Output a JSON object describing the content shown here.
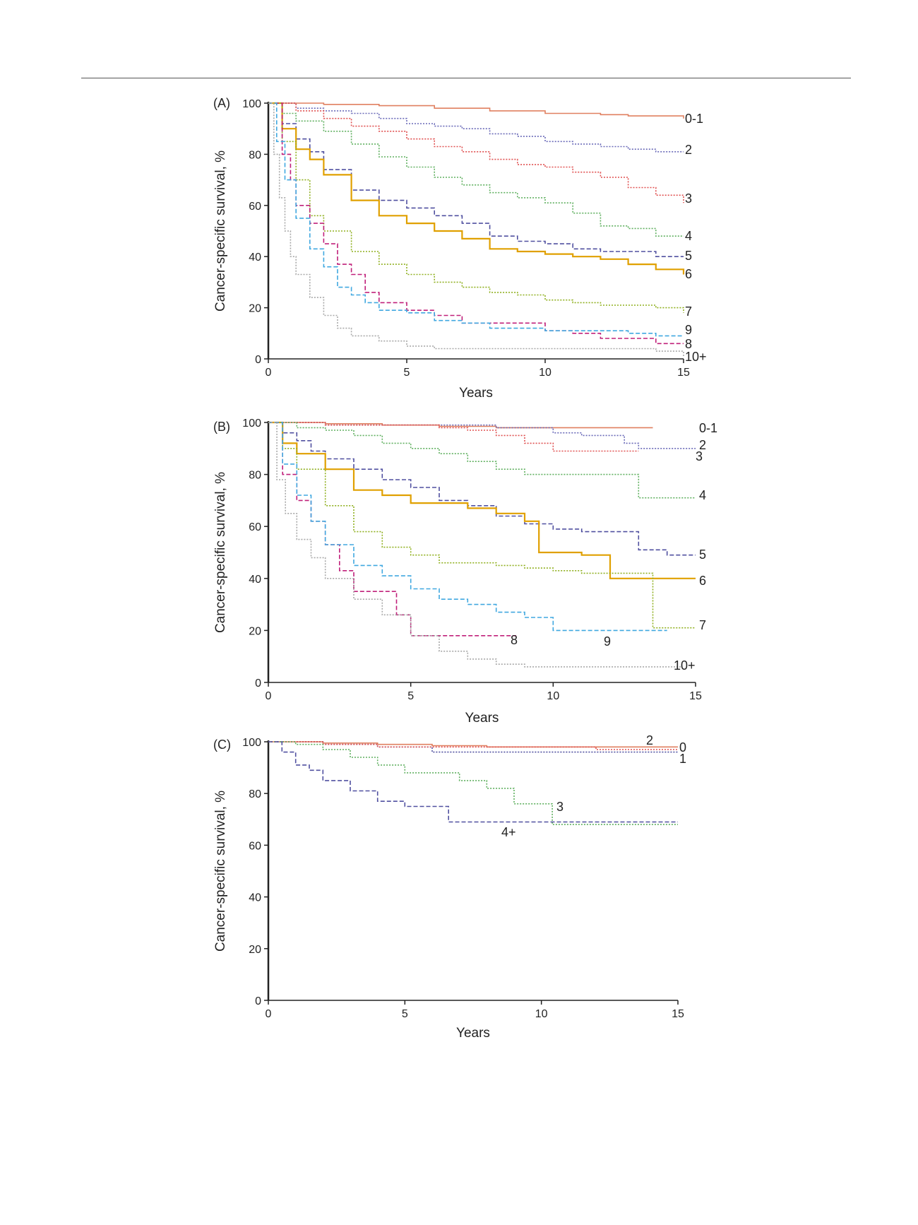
{
  "chart_data": [
    {
      "type": "line",
      "panel_label": "(A)",
      "xlabel": "Years",
      "ylabel": "Cancer-specific survival, %",
      "xlim": [
        0,
        15
      ],
      "ylim": [
        0,
        100
      ],
      "xticks": [
        "0",
        "5",
        "10",
        "15"
      ],
      "yticks": [
        "0",
        "20",
        "40",
        "60",
        "80",
        "100"
      ],
      "series": [
        {
          "name": "0-1",
          "color": "#e08060",
          "dash": "solid",
          "x": [
            0,
            2,
            4,
            6,
            8,
            10,
            12,
            13,
            15
          ],
          "y": [
            100,
            99.5,
            99,
            98,
            97,
            96,
            95.5,
            95,
            94
          ]
        },
        {
          "name": "2",
          "color": "#6a6ab8",
          "dash": "dotted",
          "x": [
            0,
            1,
            2,
            3,
            4,
            5,
            6,
            7,
            8,
            9,
            10,
            11,
            12,
            13,
            14,
            15
          ],
          "y": [
            100,
            98,
            97,
            96,
            94,
            92,
            91,
            90,
            88,
            87,
            85,
            84,
            83,
            82,
            81,
            81
          ]
        },
        {
          "name": "3",
          "color": "#e05050",
          "dash": "dotted",
          "x": [
            0,
            1,
            2,
            3,
            4,
            5,
            6,
            7,
            8,
            9,
            10,
            11,
            12,
            13,
            14,
            15
          ],
          "y": [
            100,
            97,
            94,
            91,
            89,
            86,
            83,
            81,
            78,
            76,
            75,
            73,
            71,
            67,
            64,
            61
          ]
        },
        {
          "name": "4",
          "color": "#60b060",
          "dash": "dotted",
          "x": [
            0,
            0.5,
            1,
            2,
            3,
            4,
            5,
            6,
            7,
            8,
            9,
            10,
            11,
            12,
            13,
            14,
            15
          ],
          "y": [
            100,
            96,
            93,
            89,
            84,
            79,
            75,
            71,
            68,
            65,
            63,
            61,
            57,
            52,
            51,
            48,
            48
          ]
        },
        {
          "name": "5",
          "color": "#5050a0",
          "dash": "dashed",
          "x": [
            0,
            0.5,
            1,
            1.5,
            2,
            3,
            4,
            5,
            6,
            7,
            8,
            9,
            10,
            11,
            12,
            13,
            14,
            15
          ],
          "y": [
            100,
            92,
            86,
            81,
            74,
            66,
            62,
            59,
            56,
            53,
            48,
            46,
            45,
            43,
            42,
            42,
            40,
            40
          ]
        },
        {
          "name": "6",
          "color": "#e0a000",
          "dash": "solid",
          "x": [
            0,
            0.5,
            1,
            1.5,
            2,
            3,
            4,
            5,
            6,
            7,
            8,
            9,
            10,
            11,
            12,
            13,
            14,
            15
          ],
          "y": [
            100,
            90,
            82,
            78,
            72,
            62,
            56,
            53,
            50,
            47,
            43,
            42,
            41,
            40,
            39,
            37,
            35,
            33
          ]
        },
        {
          "name": "7",
          "color": "#90b020",
          "dash": "dotted",
          "x": [
            0,
            0.5,
            1,
            1.5,
            2,
            3,
            4,
            5,
            6,
            7,
            8,
            9,
            10,
            11,
            12,
            13,
            14,
            15
          ],
          "y": [
            100,
            85,
            70,
            56,
            50,
            42,
            37,
            33,
            30,
            28,
            26,
            25,
            23,
            22,
            21,
            21,
            20,
            18
          ]
        },
        {
          "name": "8",
          "color": "#c0207a",
          "dash": "dashed",
          "x": [
            0,
            0.5,
            0.8,
            1,
            1.5,
            2,
            2.5,
            3,
            3.5,
            4,
            5,
            6,
            7,
            8,
            9,
            10,
            11,
            12,
            13,
            14,
            15
          ],
          "y": [
            100,
            80,
            70,
            60,
            53,
            45,
            37,
            33,
            26,
            22,
            19,
            17,
            14,
            14,
            14,
            11,
            10,
            8,
            8,
            6,
            6
          ]
        },
        {
          "name": "9",
          "color": "#40a8e0",
          "dash": "dashed",
          "x": [
            0,
            0.3,
            0.6,
            1,
            1.5,
            2,
            2.5,
            3,
            3.5,
            4,
            5,
            6,
            7,
            8,
            9,
            10,
            11,
            12,
            13,
            14,
            15
          ],
          "y": [
            100,
            85,
            70,
            55,
            43,
            36,
            28,
            25,
            22,
            19,
            18,
            15,
            14,
            12,
            12,
            11,
            11,
            11,
            10,
            9,
            9
          ]
        },
        {
          "name": "10+",
          "color": "#a8a8a8",
          "dash": "dotted",
          "x": [
            0,
            0.2,
            0.4,
            0.6,
            0.8,
            1,
            1.5,
            2,
            2.5,
            3,
            4,
            5,
            6,
            7,
            8,
            9,
            10,
            11,
            12,
            13,
            14,
            15
          ],
          "y": [
            100,
            80,
            63,
            50,
            40,
            33,
            24,
            17,
            12,
            9,
            7,
            5,
            4,
            4,
            4,
            4,
            4,
            4,
            4,
            4,
            3,
            1
          ]
        }
      ]
    },
    {
      "type": "line",
      "panel_label": "(B)",
      "xlabel": "Years",
      "ylabel": "Cancer-specific survival, %",
      "xlim": [
        0,
        15
      ],
      "ylim": [
        0,
        100
      ],
      "xticks": [
        "0",
        "5",
        "10",
        "15"
      ],
      "yticks": [
        "0",
        "20",
        "40",
        "60",
        "80",
        "100"
      ],
      "series": [
        {
          "name": "0-1",
          "color": "#e08060",
          "dash": "solid",
          "x": [
            0,
            2,
            4,
            6,
            8,
            10,
            12,
            13.5
          ],
          "y": [
            100,
            99.5,
            99,
            98.5,
            98,
            98,
            98,
            98
          ]
        },
        {
          "name": "2",
          "color": "#6a6ab8",
          "dash": "dotted",
          "x": [
            0,
            2,
            4,
            6,
            8,
            10,
            11,
            12,
            12.5,
            13,
            14,
            15
          ],
          "y": [
            100,
            99,
            99,
            99,
            98,
            96,
            95,
            95,
            92,
            90,
            90,
            90
          ]
        },
        {
          "name": "3",
          "color": "#e05050",
          "dash": "dotted",
          "x": [
            0,
            2,
            4,
            6,
            7,
            8,
            9,
            10,
            11,
            13
          ],
          "y": [
            100,
            99,
            99,
            98,
            97,
            95,
            92,
            89,
            89,
            89
          ]
        },
        {
          "name": "4",
          "color": "#60b060",
          "dash": "dotted",
          "x": [
            0,
            1,
            2,
            3,
            4,
            5,
            6,
            7,
            8,
            9,
            10,
            11,
            12,
            13,
            14,
            15
          ],
          "y": [
            100,
            98,
            97,
            95,
            92,
            90,
            88,
            85,
            82,
            80,
            80,
            80,
            80,
            71,
            71,
            71
          ]
        },
        {
          "name": "5",
          "color": "#5050a0",
          "dash": "dashed",
          "x": [
            0,
            0.5,
            1,
            1.5,
            2,
            3,
            4,
            5,
            6,
            7,
            8,
            9,
            10,
            11,
            12,
            13,
            14,
            15
          ],
          "y": [
            100,
            96,
            93,
            89,
            86,
            82,
            78,
            75,
            70,
            68,
            64,
            61,
            59,
            58,
            58,
            51,
            49,
            49
          ]
        },
        {
          "name": "6",
          "color": "#e0a000",
          "dash": "solid",
          "x": [
            0,
            0.5,
            1,
            2,
            3,
            4,
            5,
            6,
            7,
            8,
            9,
            9.5,
            10,
            11,
            12,
            13,
            14,
            15
          ],
          "y": [
            100,
            92,
            88,
            82,
            74,
            72,
            69,
            69,
            67,
            65,
            62,
            50,
            50,
            49,
            40,
            40,
            40,
            40
          ]
        },
        {
          "name": "7",
          "color": "#90b020",
          "dash": "dotted",
          "x": [
            0,
            0.5,
            1,
            2,
            3,
            4,
            5,
            6,
            7,
            8,
            9,
            10,
            11,
            12,
            13,
            13.5,
            14,
            15
          ],
          "y": [
            100,
            90,
            82,
            68,
            58,
            52,
            49,
            46,
            46,
            45,
            44,
            43,
            42,
            42,
            42,
            21,
            21,
            21
          ]
        },
        {
          "name": "8",
          "color": "#c0207a",
          "dash": "dashed",
          "x": [
            0,
            0.5,
            1,
            1.5,
            2,
            2.5,
            3,
            4,
            4.5,
            5,
            6,
            7,
            8,
            8.7
          ],
          "y": [
            100,
            80,
            70,
            62,
            53,
            43,
            35,
            35,
            26,
            18,
            18,
            18,
            18,
            18
          ]
        },
        {
          "name": "9",
          "color": "#40a8e0",
          "dash": "dashed",
          "x": [
            0,
            0.5,
            1,
            1.5,
            2,
            3,
            4,
            5,
            6,
            7,
            8,
            9,
            10,
            11,
            12,
            13,
            14
          ],
          "y": [
            100,
            84,
            72,
            62,
            53,
            45,
            41,
            36,
            32,
            30,
            27,
            25,
            20,
            20,
            20,
            20,
            20
          ]
        },
        {
          "name": "10+",
          "color": "#a8a8a8",
          "dash": "dotted",
          "x": [
            0,
            0.3,
            0.6,
            1,
            1.5,
            2,
            3,
            4,
            5,
            6,
            7,
            8,
            9,
            10,
            11,
            12,
            13,
            14,
            14.5
          ],
          "y": [
            100,
            78,
            65,
            55,
            48,
            40,
            32,
            26,
            18,
            12,
            9,
            7,
            6,
            6,
            6,
            6,
            6,
            6,
            6
          ]
        }
      ]
    },
    {
      "type": "line",
      "panel_label": "(C)",
      "xlabel": "Years",
      "ylabel": "Cancer-specific survival, %",
      "xlim": [
        0,
        15
      ],
      "ylim": [
        0,
        100
      ],
      "xticks": [
        "0",
        "5",
        "10",
        "15"
      ],
      "yticks": [
        "0",
        "20",
        "40",
        "60",
        "80",
        "100"
      ],
      "series": [
        {
          "name": "0",
          "color": "#e08060",
          "dash": "solid",
          "x": [
            0,
            2,
            4,
            6,
            8,
            10,
            12,
            14,
            15
          ],
          "y": [
            100,
            99.5,
            99,
            98.5,
            98,
            98,
            98,
            98,
            98
          ]
        },
        {
          "name": "1",
          "color": "#5050a0",
          "dash": "dotted",
          "x": [
            0,
            2,
            4,
            6,
            8,
            10,
            12,
            14,
            15
          ],
          "y": [
            100,
            99,
            98,
            96,
            96,
            96,
            96,
            96,
            96
          ]
        },
        {
          "name": "2",
          "color": "#e05050",
          "dash": "dotted",
          "x": [
            0,
            2,
            4,
            6,
            8,
            10,
            11,
            12,
            14,
            15
          ],
          "y": [
            100,
            99,
            98,
            98,
            98,
            98,
            98,
            97,
            97,
            97
          ]
        },
        {
          "name": "3",
          "color": "#60b060",
          "dash": "dotted",
          "x": [
            0,
            1,
            1.5,
            2,
            3,
            4,
            5,
            6,
            7,
            7.5,
            8,
            9,
            10,
            10.4,
            11,
            12,
            13,
            14,
            15
          ],
          "y": [
            100,
            99,
            99,
            97,
            94,
            91,
            88,
            88,
            85,
            85,
            82,
            76,
            76,
            68,
            68,
            68,
            68,
            68,
            68
          ]
        },
        {
          "name": "4+",
          "color": "#5050a0",
          "dash": "dashed",
          "x": [
            0,
            0.5,
            1,
            1.5,
            2,
            3,
            4,
            5,
            6,
            6.6,
            7,
            8,
            9,
            10,
            11,
            12,
            13,
            14,
            15
          ],
          "y": [
            100,
            96,
            91,
            89,
            85,
            81,
            77,
            75,
            75,
            69,
            69,
            69,
            69,
            69,
            69,
            69,
            69,
            69,
            69
          ]
        }
      ]
    }
  ]
}
